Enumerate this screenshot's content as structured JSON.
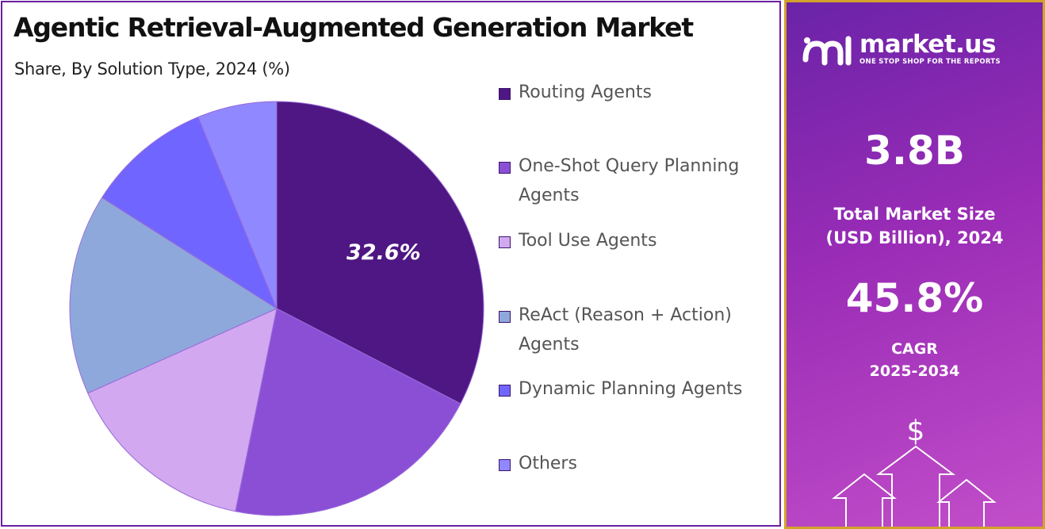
{
  "chart_data": {
    "type": "pie",
    "title": "Agentic Retrieval-Augmented Generation Market",
    "subtitle": "Share, By Solution Type, 2024 (%)",
    "slices": [
      {
        "label": "Routing Agents",
        "value": 32.6,
        "color": "#4e1783",
        "display_label": "32.6%"
      },
      {
        "label": "One-Shot Query Planning Agents",
        "value": 20.6,
        "color": "#8b4fd6",
        "display_label": ""
      },
      {
        "label": "Tool Use Agents",
        "value": 15.1,
        "color": "#d2a8f0",
        "display_label": ""
      },
      {
        "label": "ReAct (Reason + Action) Agents",
        "value": 15.7,
        "color": "#8ea8dc",
        "display_label": ""
      },
      {
        "label": "Dynamic Planning Agents",
        "value": 9.8,
        "color": "#7066ff",
        "display_label": ""
      },
      {
        "label": "Others",
        "value": 6.2,
        "color": "#8f88ff",
        "display_label": ""
      }
    ],
    "legend_position": "right"
  },
  "brand": {
    "name": "market.us",
    "tagline": "ONE STOP SHOP FOR THE REPORTS"
  },
  "stats": {
    "market_size_value": "3.8B",
    "market_size_label_line1": "Total Market Size",
    "market_size_label_line2": "(USD Billion), 2024",
    "cagr_value": "45.8%",
    "cagr_label_line1": "CAGR",
    "cagr_label_line2": "2025-2034"
  },
  "decor": {
    "dollar_symbol": "$"
  },
  "colors": {
    "panel_border": "#6a1fa1",
    "sidebar_border": "#d4a22a",
    "sidebar_gradient_start": "#6a23a8",
    "sidebar_gradient_end": "#c24ec9"
  }
}
